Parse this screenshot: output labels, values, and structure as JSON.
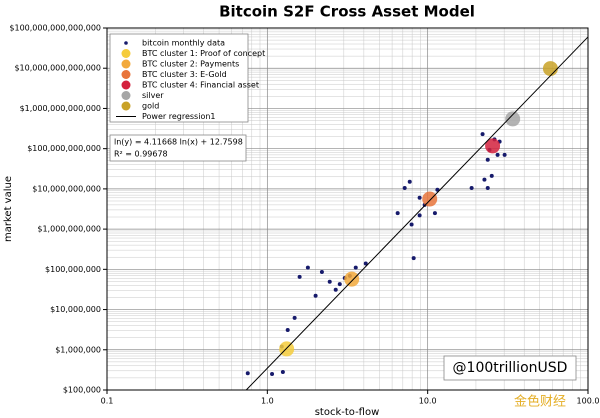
{
  "chart_data": {
    "type": "scatter",
    "title": "Bitcoin S2F Cross Asset Model",
    "x_label": "stock-to-flow",
    "y_label": "market value",
    "log_x": true,
    "log_y": true,
    "grid": true,
    "xlim": [
      0.1,
      100
    ],
    "ylim": [
      100000,
      100000000000000
    ],
    "xticks": [
      0.1,
      {
        "value": 1,
        "label": "1.0"
      },
      {
        "value": 10,
        "label": "10.0"
      },
      {
        "value": 100,
        "label": "100.0"
      }
    ],
    "yticks": [
      {
        "value": 100000,
        "label": "$100,000"
      },
      {
        "value": 1000000,
        "label": "$1,000,000"
      },
      {
        "value": 10000000,
        "label": "$10,000,000"
      },
      {
        "value": 100000000,
        "label": "$100,000,000"
      },
      {
        "value": 1000000000,
        "label": "$1,000,000,000"
      },
      {
        "value": 10000000000,
        "label": "$10,000,000,000"
      },
      {
        "value": 100000000000,
        "label": "$100,000,000,000"
      },
      {
        "value": 1000000000000,
        "label": "$1,000,000,000,000"
      },
      {
        "value": 10000000000000,
        "label": "$10,000,000,000,000"
      },
      {
        "value": 100000000000000,
        "label": "$100,000,000,000,000"
      }
    ],
    "legend": "upper left",
    "series": [
      {
        "name": "bitcoin monthly data",
        "color": "#161a6b",
        "marker": "dot",
        "x": [
          0.755,
          1.07,
          1.25,
          1.34,
          1.59,
          1.79,
          2.0,
          2.19,
          2.45,
          2.67,
          2.83,
          3.04,
          3.27,
          3.56,
          4.11,
          7.19,
          7.73,
          7.94,
          8.18,
          8.91,
          9.58,
          11.1,
          11.5,
          6.5,
          18.8,
          22.0,
          22.6,
          23.7,
          24.3,
          26.1,
          27.3,
          30.2,
          23.7,
          25.1,
          28.1,
          1.23,
          1.48,
          8.91
        ],
        "values": [
          260000,
          250000,
          280000,
          3100000,
          65000000,
          110000000,
          22000000,
          86000000,
          49000000,
          31000000,
          43000000,
          61000000,
          69000000,
          110000000,
          140000000,
          10500000000,
          15000000000,
          1300000000,
          190000000,
          6000000000,
          4000000000,
          2500000000,
          9500000000,
          2500000000,
          10500000000,
          230000000000,
          17000000000,
          53000000000,
          93000000000,
          170000000000,
          70000000000,
          70000000000,
          10500000000,
          21000000000,
          150000000000,
          1200000,
          6200000,
          2200000000
        ]
      },
      {
        "name": "BTC cluster 1: Proof of concept",
        "color": "#f5cc3c",
        "marker": "circle",
        "x": [
          1.32
        ],
        "values": [
          1050000
        ]
      },
      {
        "name": "BTC cluster 2: Payments",
        "color": "#f2a93b",
        "marker": "circle",
        "x": [
          3.36
        ],
        "values": [
          57000000
        ]
      },
      {
        "name": "BTC cluster 3: E-Gold",
        "color": "#e8743b",
        "marker": "circle",
        "x": [
          10.3
        ],
        "values": [
          5600000000
        ]
      },
      {
        "name": "BTC cluster 4: Financial asset",
        "color": "#d4213d",
        "marker": "circle",
        "x": [
          25.4
        ],
        "values": [
          117000000000
        ]
      },
      {
        "name": "silver",
        "color": "#a6a6a6",
        "marker": "circle",
        "x": [
          33.9
        ],
        "values": [
          550000000000
        ]
      },
      {
        "name": "gold",
        "color": "#c9a227",
        "marker": "circle",
        "x": [
          58.3
        ],
        "values": [
          9800000000000
        ]
      },
      {
        "name": "Power regression1",
        "color": "#000000",
        "marker": "line",
        "x": [
          0.7387,
          100
        ],
        "values": [
          100000,
          60000000000000
        ]
      }
    ],
    "equation": "ln(y) = 4.11668 ln(x) + 12.7598",
    "r_squared": "R² = 0.99678",
    "watermark": "@100trillionUSD",
    "source_mark": "金色财经"
  }
}
